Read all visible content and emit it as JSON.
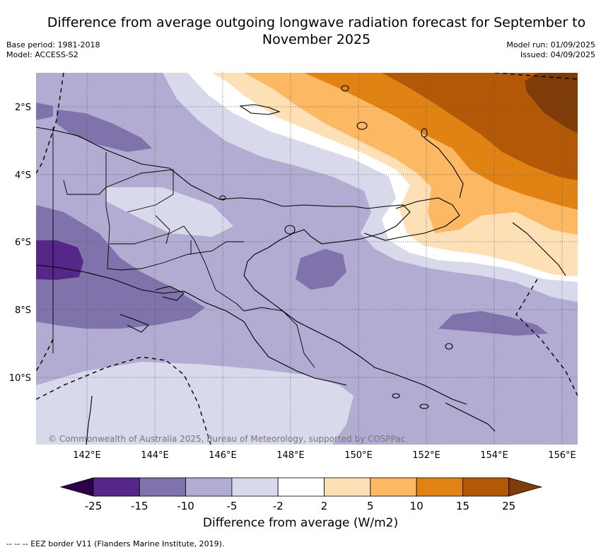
{
  "title": "Difference from average outgoing longwave radiation forecast for September to November 2025",
  "meta_left": {
    "base_period": "Base period: 1981-2018",
    "model": "Model: ACCESS-S2"
  },
  "meta_right": {
    "model_run": "Model run: 01/09/2025",
    "issued": "Issued: 04/09/2025"
  },
  "map": {
    "lat_labels": [
      "2°S",
      "4°S",
      "6°S",
      "8°S",
      "10°S"
    ],
    "lon_labels": [
      "142°E",
      "144°E",
      "146°E",
      "148°E",
      "150°E",
      "152°E",
      "154°E",
      "156°E"
    ],
    "copyright": "© Commonwealth of Australia 2025, Bureau of Meteorology, supported by COSPPac"
  },
  "colorbar": {
    "title": "Difference from average (W/m2)",
    "ticks": [
      "-25",
      "-15",
      "-10",
      "-5",
      "-2",
      "2",
      "5",
      "10",
      "15",
      "25"
    ],
    "colors": [
      "#2d004b",
      "#542788",
      "#8073ac",
      "#b2abd2",
      "#d8daeb",
      "#ffffff",
      "#fee0b6",
      "#fdb863",
      "#e08214",
      "#b35806",
      "#7f3b08"
    ]
  },
  "footnote": "--  --  -- EEZ border V11 (Flanders Marine Institute, 2019)."
}
